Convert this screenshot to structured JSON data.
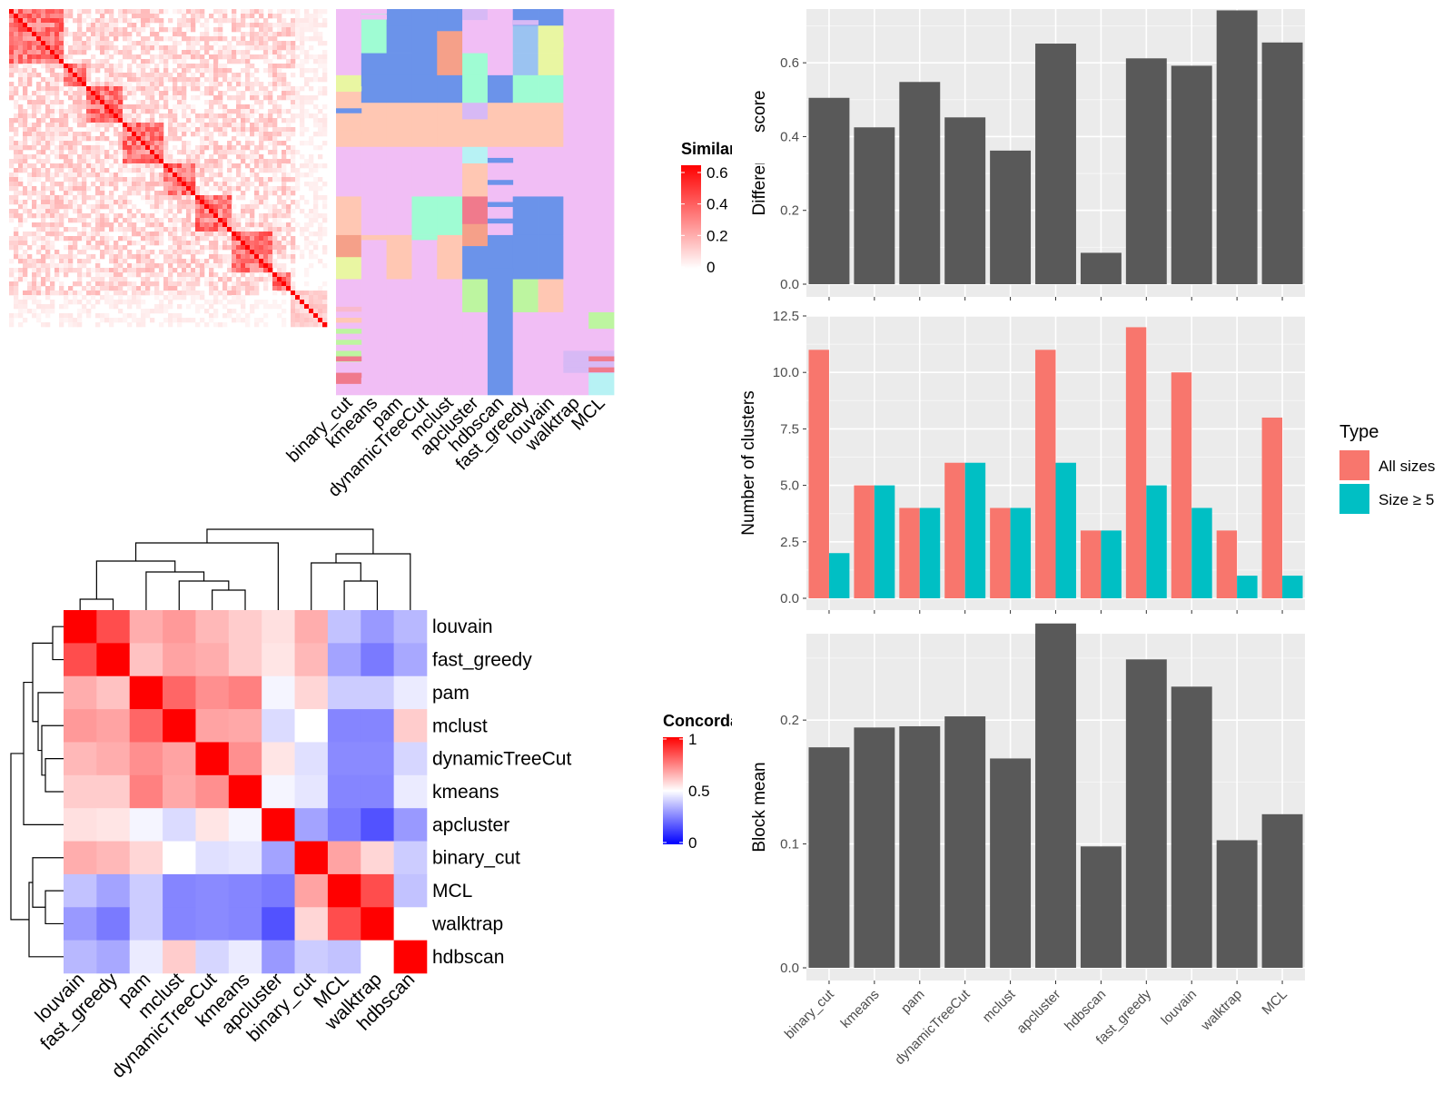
{
  "chart_data": [
    {
      "type": "heatmap",
      "title": "",
      "panel": "top-left similarity matrix",
      "legend": {
        "title": "Similarity",
        "ticks": [
          "0",
          "0.2",
          "0.4",
          "0.6"
        ],
        "range": [
          0,
          0.6
        ]
      },
      "colors": {
        "low": "#ffffff",
        "high": "#ff0000"
      },
      "block_boundaries": [
        0,
        12,
        17,
        25,
        34,
        41,
        49,
        58,
        62,
        70
      ],
      "n_items": 70
    },
    {
      "type": "heatmap",
      "title": "",
      "panel": "top-middle cluster assignment matrix",
      "columns": [
        "binary_cut",
        "kmeans",
        "pam",
        "dynamicTreeCut",
        "mclust",
        "apcluster",
        "hdbscan",
        "fast_greedy",
        "louvain",
        "walktrap",
        "MCL"
      ],
      "cluster_colors": [
        "#f1bef5",
        "#6b93ea",
        "#9ffcd3",
        "#ffc7b3",
        "#f5a089",
        "#e9f6a2",
        "#bdf5a0",
        "#9bc3f1",
        "#d7b9f5",
        "#f07a8c",
        "#f9b9cd",
        "#b7f2f4"
      ]
    },
    {
      "type": "bar",
      "title": "",
      "categories": [
        "binary_cut",
        "kmeans",
        "pam",
        "dynamicTreeCut",
        "mclust",
        "apcluster",
        "hdbscan",
        "fast_greedy",
        "louvain",
        "walktrap",
        "MCL"
      ],
      "values": [
        0.505,
        0.425,
        0.548,
        0.452,
        0.362,
        0.652,
        0.085,
        0.612,
        0.592,
        0.742,
        0.655
      ],
      "xlabel": "",
      "ylabel": "Difference score",
      "ylim": [
        0,
        0.78
      ],
      "yticks": [
        "0.0",
        "0.2",
        "0.4",
        "0.6"
      ],
      "color": "#595959"
    },
    {
      "type": "bar",
      "title": "",
      "categories": [
        "binary_cut",
        "kmeans",
        "pam",
        "dynamicTreeCut",
        "mclust",
        "apcluster",
        "hdbscan",
        "fast_greedy",
        "louvain",
        "walktrap",
        "MCL"
      ],
      "series": [
        {
          "name": "All sizes",
          "color": "#f8766d",
          "values": [
            11,
            5,
            4,
            6,
            4,
            11,
            3,
            12,
            10,
            3,
            8
          ]
        },
        {
          "name": "Size ≥ 5",
          "color": "#00bfc4",
          "values": [
            2,
            5,
            4,
            6,
            4,
            6,
            3,
            5,
            4,
            1,
            1
          ]
        }
      ],
      "xlabel": "",
      "ylabel": "Number of clusters",
      "ylim": [
        0,
        12.5
      ],
      "yticks": [
        "0.0",
        "2.5",
        "5.0",
        "7.5",
        "10.0",
        "12.5"
      ],
      "legend_title": "Type",
      "legend_position": "right"
    },
    {
      "type": "bar",
      "title": "",
      "categories": [
        "binary_cut",
        "kmeans",
        "pam",
        "dynamicTreeCut",
        "mclust",
        "apcluster",
        "hdbscan",
        "fast_greedy",
        "louvain",
        "walktrap",
        "MCL"
      ],
      "values": [
        0.178,
        0.194,
        0.195,
        0.203,
        0.169,
        0.278,
        0.098,
        0.249,
        0.227,
        0.103,
        0.124
      ],
      "xlabel": "",
      "ylabel": "Block mean",
      "ylim": [
        0,
        0.28
      ],
      "yticks": [
        "0.0",
        "0.1",
        "0.2"
      ],
      "color": "#595959"
    },
    {
      "type": "heatmap",
      "title": "",
      "panel": "bottom-left concordance matrix",
      "rows": [
        "louvain",
        "fast_greedy",
        "pam",
        "mclust",
        "dynamicTreeCut",
        "kmeans",
        "apcluster",
        "binary_cut",
        "MCL",
        "walktrap",
        "hdbscan"
      ],
      "columns": [
        "louvain",
        "fast_greedy",
        "pam",
        "mclust",
        "dynamicTreeCut",
        "kmeans",
        "apcluster",
        "binary_cut",
        "MCL",
        "walktrap",
        "hdbscan"
      ],
      "values": [
        [
          1.0,
          0.85,
          0.66,
          0.7,
          0.64,
          0.6,
          0.56,
          0.66,
          0.38,
          0.3,
          0.36
        ],
        [
          0.85,
          1.0,
          0.62,
          0.68,
          0.66,
          0.6,
          0.55,
          0.64,
          0.32,
          0.24,
          0.33
        ],
        [
          0.66,
          0.62,
          1.0,
          0.8,
          0.72,
          0.75,
          0.48,
          0.58,
          0.4,
          0.4,
          0.46
        ],
        [
          0.7,
          0.68,
          0.8,
          1.0,
          0.68,
          0.67,
          0.43,
          0.5,
          0.26,
          0.26,
          0.6
        ],
        [
          0.64,
          0.66,
          0.72,
          0.68,
          1.0,
          0.72,
          0.55,
          0.44,
          0.27,
          0.27,
          0.42
        ],
        [
          0.6,
          0.6,
          0.75,
          0.67,
          0.72,
          1.0,
          0.48,
          0.45,
          0.26,
          0.26,
          0.46
        ],
        [
          0.56,
          0.55,
          0.48,
          0.43,
          0.55,
          0.48,
          1.0,
          0.32,
          0.24,
          0.16,
          0.3
        ],
        [
          0.66,
          0.64,
          0.58,
          0.5,
          0.44,
          0.45,
          0.32,
          1.0,
          0.68,
          0.58,
          0.4
        ],
        [
          0.38,
          0.32,
          0.4,
          0.26,
          0.27,
          0.26,
          0.24,
          0.68,
          1.0,
          0.85,
          0.38
        ],
        [
          0.3,
          0.24,
          0.4,
          0.26,
          0.27,
          0.26,
          0.16,
          0.58,
          0.85,
          1.0,
          0.5
        ],
        [
          0.36,
          0.33,
          0.46,
          0.6,
          0.42,
          0.46,
          0.3,
          0.4,
          0.38,
          0.5,
          1.0
        ]
      ],
      "legend": {
        "title": "Concordance",
        "ticks": [
          "1",
          "0.5",
          "0"
        ],
        "range": [
          0,
          1
        ]
      },
      "colors": {
        "low": "#0000ff",
        "mid": "#ffffff",
        "high": "#ff0000"
      }
    }
  ],
  "legend": {
    "title": "Type",
    "items": [
      {
        "label": "All sizes",
        "color": "#f8766d"
      },
      {
        "label": "Size ≥ 5",
        "color": "#00bfc4"
      }
    ]
  }
}
